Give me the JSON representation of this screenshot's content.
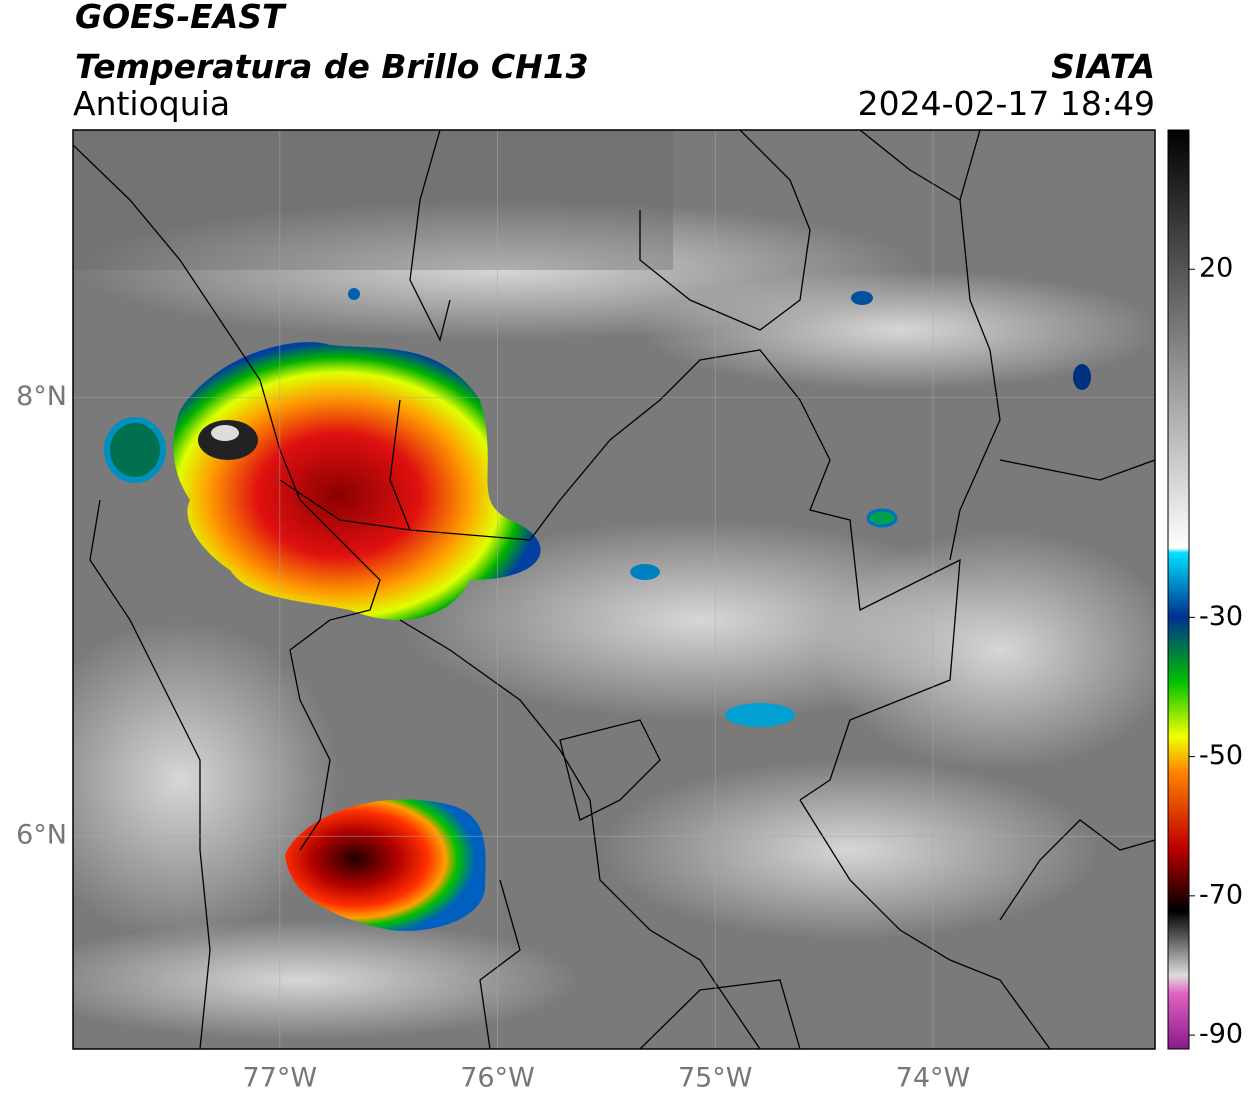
{
  "header": {
    "satellite": "GOES-EAST",
    "product": "Temperatura de Brillo CH13",
    "region": "Antioquia",
    "source": "SIATA",
    "datetime": "2024-02-17 18:49"
  },
  "map": {
    "lon_lim": [
      -77.95,
      -72.98
    ],
    "lat_lim": [
      5.03,
      9.22
    ],
    "lon_ticks": [
      {
        "value": -77,
        "label": "77°W"
      },
      {
        "value": -76,
        "label": "76°W"
      },
      {
        "value": -75,
        "label": "75°W"
      },
      {
        "value": -74,
        "label": "74°W"
      }
    ],
    "lat_ticks": [
      {
        "value": 8,
        "label": "8°N"
      },
      {
        "value": 6,
        "label": "6°N"
      }
    ]
  },
  "colorbar": {
    "lim": [
      -92,
      40
    ],
    "ticks": [
      20,
      -30,
      -50,
      -70,
      -90
    ]
  }
}
